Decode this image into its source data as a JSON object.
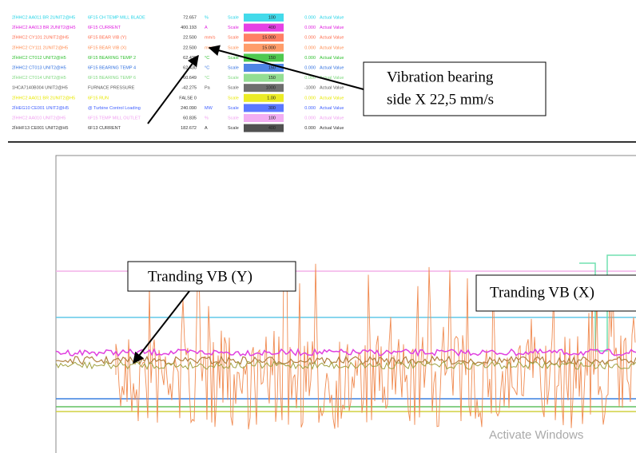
{
  "table": {
    "header_scale": "Scale",
    "header_actual": "Actual Value",
    "rows": [
      {
        "tag": "2ÍHHC2 AA011 BR 2UNIT2@H5",
        "desc": "6F15 CH TEMP MILL BLADE",
        "value": "72.657",
        "unit": "%",
        "bar": "100",
        "low": "0.000",
        "color": "#22d3e6"
      },
      {
        "tag": "2ÍHHC2 AA013 BR 2UNIT2@H5",
        "desc": "6F15 CURRENT",
        "value": "400.193",
        "unit": "A",
        "bar": "400",
        "low": "0.000",
        "color": "#e020e0"
      },
      {
        "tag": "2ÍHHC2 CY101 2UNIT2@H5",
        "desc": "6F15 BEAR VIB (Y)",
        "value": "22.500",
        "unit": "mm/s",
        "bar": "15.000",
        "low": "0.000",
        "color": "#ff6a4a"
      },
      {
        "tag": "2ÍHHC2 CY111 2UNIT2@H5",
        "desc": "6F15 BEAR VIB (X)",
        "value": "22.500",
        "unit": "mm/s",
        "bar": "15.000",
        "low": "0.000",
        "color": "#ff8c50"
      },
      {
        "tag": "2ÍHHC2 CT012 UNIT2@H5",
        "desc": "6F15 BEARING TEMP 2",
        "value": "62.430",
        "unit": "°C",
        "bar": "150",
        "low": "0.000",
        "color": "#30c030"
      },
      {
        "tag": "2ÍHHC2 CT013 UNIT2@H5",
        "desc": "6F15 BEARING TEMP 4",
        "value": "62.430",
        "unit": "°C",
        "bar": "150",
        "low": "0.000",
        "color": "#3070e0"
      },
      {
        "tag": "2ÍHHC2 CT014 UNIT2@H5",
        "desc": "6F15 BEARING TEMP 6",
        "value": "60.649",
        "unit": "°C",
        "bar": "150",
        "low": "0.000",
        "color": "#80d880"
      },
      {
        "tag": "1HCA7140B004 UNIT2@H5",
        "desc": "FURNACE PRESSURE",
        "value": "-42.275",
        "unit": "Pa",
        "bar": "1000",
        "low": "-1000",
        "color": "#555555"
      },
      {
        "tag": "2ÍHHC2 AA011 BR 2UNIT2@H5",
        "desc": "6F15 RUN",
        "value": "FALSE 0",
        "bar": "1.00",
        "low": "0.000",
        "color": "#e8e800"
      },
      {
        "tag": "2ÍHEG10 CE001 UNIT2@H5",
        "desc": "@ Turbine Control Loading",
        "value": "240.090",
        "unit": "MW",
        "bar": "300",
        "low": "0.000",
        "color": "#4060ff"
      },
      {
        "tag": "2ÍHHC2 AA010 UNIT2@H5",
        "desc": "6F15 TEMP MILL OUTLET",
        "value": "60.835",
        "unit": "%",
        "bar": "100",
        "low": "0.000",
        "color": "#f0a0f0"
      },
      {
        "tag": "2ÍHHF13 CE001 UNIT2@H5",
        "desc": "6F13 CURRENT",
        "value": "182.672",
        "unit": "A",
        "bar": "400",
        "low": "0.000",
        "color": "#333333"
      }
    ]
  },
  "annotations": {
    "vibration_line1": "Vibration bearing",
    "vibration_line2": "side X 22,5 mm/s",
    "trend_y": "Tranding VB (Y)",
    "trend_x": "Tranding VB (X)"
  },
  "watermark": "Activate Windows"
}
